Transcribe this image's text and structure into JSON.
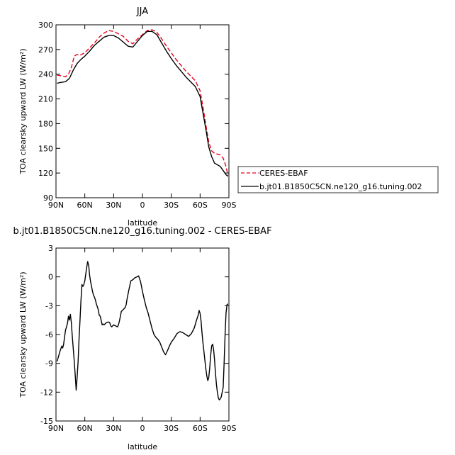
{
  "chart_data": [
    {
      "type": "line",
      "title": "JJA",
      "xlabel": "latitude",
      "ylabel": "TOA clearsky upward LW (W/m²)",
      "xlim": [
        90,
        -90
      ],
      "ylim": [
        90,
        300
      ],
      "xticks": [
        90,
        60,
        30,
        0,
        -30,
        -60,
        -90
      ],
      "xtick_labels": [
        "90N",
        "60N",
        "30N",
        "0",
        "30S",
        "60S",
        "90S"
      ],
      "yticks": [
        90,
        120,
        150,
        180,
        210,
        240,
        270,
        300
      ],
      "ytick_labels": [
        "90",
        "120",
        "150",
        "180",
        "210",
        "240",
        "270",
        "300"
      ],
      "legend": "outside-right",
      "series": [
        {
          "name": "CERES-EBAF",
          "color": "#e8001c",
          "dash": "dashed",
          "x": [
            89,
            85,
            80,
            77,
            74,
            71,
            68,
            65,
            60,
            55,
            50,
            45,
            40,
            35,
            30,
            25,
            20,
            15,
            10,
            5,
            0,
            -5,
            -10,
            -15,
            -20,
            -25,
            -30,
            -35,
            -40,
            -45,
            -50,
            -55,
            -60,
            -63,
            -66,
            -69,
            -72,
            -75,
            -78,
            -81,
            -84,
            -87,
            -89
          ],
          "y": [
            239,
            238,
            237,
            240,
            248,
            262,
            264,
            263,
            266,
            272,
            278,
            285,
            290,
            293,
            292,
            289,
            286,
            280,
            277,
            283,
            288,
            293,
            294,
            291,
            283,
            274,
            266,
            258,
            251,
            244,
            238,
            232,
            220,
            200,
            178,
            158,
            147,
            144,
            143,
            142,
            138,
            128,
            117
          ]
        },
        {
          "name": "b.jt01.B1850C5CN.ne120_g16.tuning.002",
          "color": "#000000",
          "dash": "solid",
          "x": [
            89,
            85,
            80,
            76,
            72,
            68,
            64,
            60,
            55,
            50,
            45,
            40,
            35,
            30,
            25,
            20,
            15,
            10,
            5,
            0,
            -5,
            -10,
            -15,
            -20,
            -25,
            -30,
            -35,
            -40,
            -45,
            -50,
            -55,
            -60,
            -63,
            -66,
            -69,
            -72,
            -75,
            -78,
            -81,
            -84,
            -87,
            -89
          ],
          "y": [
            229,
            230,
            231,
            235,
            245,
            253,
            258,
            262,
            268,
            275,
            280,
            285,
            287,
            287,
            284,
            279,
            274,
            273,
            280,
            287,
            292,
            292,
            288,
            278,
            268,
            259,
            251,
            244,
            237,
            231,
            225,
            213,
            193,
            173,
            152,
            140,
            132,
            130,
            128,
            123,
            118,
            116
          ]
        }
      ]
    },
    {
      "type": "line",
      "title": "b.jt01.B1850C5CN.ne120_g16.tuning.002 - CERES-EBAF",
      "xlabel": "latitude",
      "ylabel": "TOA clearsky upward LW (W/m²)",
      "xlim": [
        90,
        -90
      ],
      "ylim": [
        -15,
        3
      ],
      "xticks": [
        90,
        60,
        30,
        0,
        -30,
        -60,
        -90
      ],
      "xtick_labels": [
        "90N",
        "60N",
        "30N",
        "0",
        "30S",
        "60S",
        "90S"
      ],
      "yticks": [
        -15,
        -12,
        -9,
        -6,
        -3,
        0,
        3
      ],
      "ytick_labels": [
        "-15",
        "-12",
        "-9",
        "-6",
        "-3",
        "0",
        "3"
      ],
      "series": [
        {
          "color": "#000000",
          "dash": "solid",
          "x": [
            89,
            88,
            86,
            85,
            84,
            83,
            82,
            81,
            80,
            79,
            78,
            77,
            76,
            75,
            74,
            73,
            72,
            71,
            70,
            69,
            68,
            67,
            66,
            65,
            64,
            63,
            62,
            61,
            60,
            59,
            58,
            57,
            56,
            55,
            54,
            53,
            52,
            51,
            50,
            49,
            48,
            47,
            46,
            45,
            44,
            43,
            42,
            41,
            40,
            38,
            36,
            35,
            34,
            33,
            32,
            30,
            28,
            26,
            25,
            24,
            22,
            20,
            18,
            17,
            16,
            14,
            12,
            10,
            8,
            6,
            4,
            2,
            0,
            -2,
            -4,
            -6,
            -8,
            -10,
            -12,
            -14,
            -16,
            -18,
            -20,
            -22,
            -24,
            -26,
            -28,
            -30,
            -33,
            -36,
            -39,
            -42,
            -45,
            -48,
            -51,
            -54,
            -56,
            -58,
            -59,
            -60,
            -61,
            -62,
            -63,
            -64,
            -65,
            -66,
            -67,
            -68,
            -69,
            -70,
            -71,
            -72,
            -73,
            -74,
            -75,
            -76,
            -77,
            -78,
            -79,
            -80,
            -81,
            -82,
            -83,
            -84,
            -85,
            -86,
            -87,
            -88,
            -89
          ],
          "y": [
            -8.8,
            -8.5,
            -7.8,
            -7.5,
            -7.2,
            -7.4,
            -7.0,
            -6.2,
            -5.5,
            -5.2,
            -4.8,
            -4.1,
            -4.5,
            -3.9,
            -4.8,
            -6.2,
            -7.5,
            -8.8,
            -10.2,
            -11.8,
            -10.5,
            -8.8,
            -6.5,
            -4.5,
            -2.5,
            -0.8,
            -1.0,
            -0.8,
            -0.4,
            0.3,
            1.0,
            1.6,
            1.2,
            0.2,
            -0.5,
            -1.0,
            -1.5,
            -1.9,
            -2.1,
            -2.4,
            -2.8,
            -3.1,
            -3.4,
            -4.0,
            -4.1,
            -4.5,
            -5.0,
            -4.9,
            -5.0,
            -4.8,
            -4.7,
            -4.7,
            -4.8,
            -5.1,
            -5.2,
            -5.0,
            -5.1,
            -5.2,
            -5.0,
            -4.6,
            -3.6,
            -3.4,
            -3.2,
            -2.9,
            -2.3,
            -1.3,
            -0.4,
            -0.3,
            -0.1,
            0.0,
            0.1,
            -0.5,
            -1.5,
            -2.4,
            -3.2,
            -3.8,
            -4.6,
            -5.4,
            -6.0,
            -6.3,
            -6.5,
            -6.8,
            -7.3,
            -7.8,
            -8.1,
            -7.7,
            -7.2,
            -6.8,
            -6.4,
            -5.9,
            -5.7,
            -5.8,
            -6.0,
            -6.2,
            -5.9,
            -5.3,
            -4.6,
            -4.0,
            -3.5,
            -3.8,
            -4.6,
            -5.8,
            -6.9,
            -7.8,
            -8.7,
            -9.6,
            -10.3,
            -10.8,
            -10.5,
            -9.5,
            -8.2,
            -7.2,
            -7.0,
            -7.5,
            -8.6,
            -10.0,
            -11.2,
            -12.0,
            -12.6,
            -12.8,
            -12.7,
            -12.5,
            -12.0,
            -11.5,
            -9.0,
            -6.0,
            -3.8,
            -2.9,
            -2.8
          ]
        }
      ]
    }
  ]
}
